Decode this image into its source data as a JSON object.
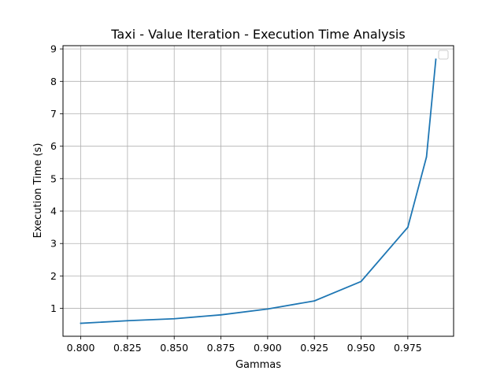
{
  "chart_data": {
    "type": "line",
    "title": "Taxi - Value Iteration - Execution Time Analysis",
    "xlabel": "Gammas",
    "ylabel": "Execution Time (s)",
    "xlim": [
      0.7905,
      0.9995
    ],
    "ylim": [
      0.14,
      9.1
    ],
    "x_ticks": [
      0.8,
      0.825,
      0.85,
      0.875,
      0.9,
      0.925,
      0.95,
      0.975
    ],
    "x_tick_labels": [
      "0.800",
      "0.825",
      "0.850",
      "0.875",
      "0.900",
      "0.925",
      "0.950",
      "0.975"
    ],
    "y_ticks": [
      1,
      2,
      3,
      4,
      5,
      6,
      7,
      8,
      9
    ],
    "y_tick_labels": [
      "1",
      "2",
      "3",
      "4",
      "5",
      "6",
      "7",
      "8",
      "9"
    ],
    "grid": true,
    "legend": "top-right",
    "series": [
      {
        "color": "#1f77b4",
        "x": [
          0.8,
          0.825,
          0.85,
          0.875,
          0.9,
          0.925,
          0.95,
          0.975,
          0.985,
          0.99
        ],
        "y": [
          0.54,
          0.62,
          0.68,
          0.8,
          0.98,
          1.23,
          1.83,
          3.5,
          5.67,
          8.68
        ]
      }
    ]
  }
}
